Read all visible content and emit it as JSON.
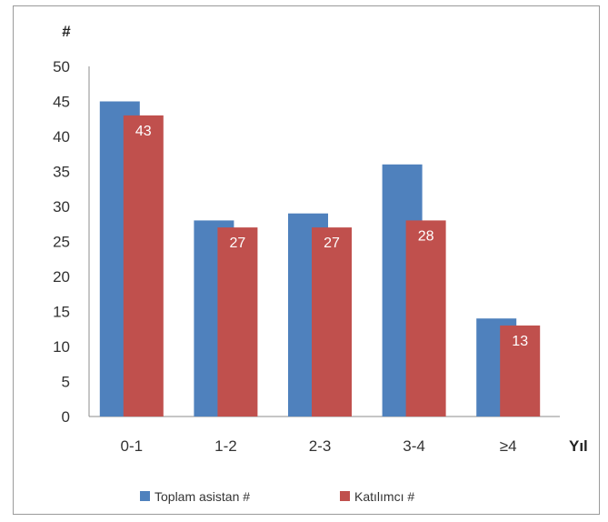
{
  "chart_data": {
    "type": "bar",
    "ylabel": "#",
    "xlabel": "Yıl",
    "ylim": [
      0,
      50
    ],
    "yticks": [
      0,
      5,
      10,
      15,
      20,
      25,
      30,
      35,
      40,
      45,
      50
    ],
    "categories": [
      "0-1",
      "1-2",
      "2-3",
      "3-4",
      "≥4"
    ],
    "series": [
      {
        "name": "Toplam asistan #",
        "color": "#4f81bd",
        "values": [
          45,
          28,
          29,
          36,
          14
        ],
        "data_labels": false
      },
      {
        "name": "Katılımcı #",
        "color": "#c0504d",
        "values": [
          43,
          27,
          27,
          28,
          13
        ],
        "data_labels": true
      }
    ],
    "grid": false,
    "legend_position": "bottom"
  }
}
